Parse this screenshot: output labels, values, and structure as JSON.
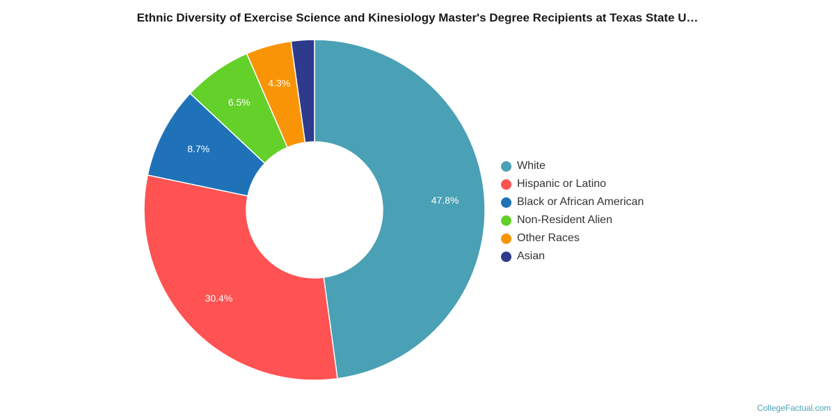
{
  "chart_data": {
    "type": "pie",
    "title": "Ethnic Diversity of Exercise Science and Kinesiology Master's Degree Recipients at Texas State U…",
    "categories": [
      "White",
      "Hispanic or Latino",
      "Black or African American",
      "Non-Resident Alien",
      "Other Races",
      "Asian"
    ],
    "values": [
      47.8,
      30.4,
      8.7,
      6.5,
      4.3,
      2.2
    ],
    "data_labels": [
      "47.8%",
      "30.4%",
      "8.7%",
      "6.5%",
      "4.3%",
      ""
    ],
    "colors": [
      "#4aa0b4",
      "#ff5252",
      "#1f72b8",
      "#64d02a",
      "#f99406",
      "#2e3a8c"
    ],
    "legend_position": "right"
  },
  "footer": {
    "credit": "CollegeFactual.com"
  }
}
